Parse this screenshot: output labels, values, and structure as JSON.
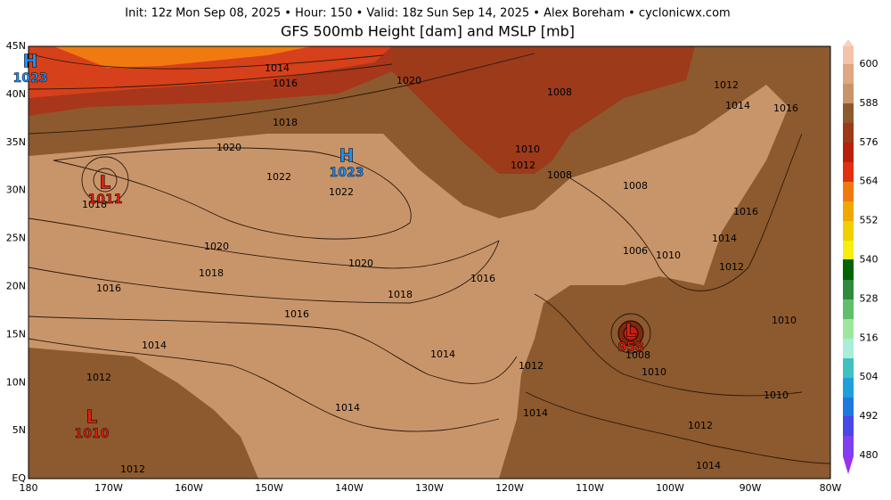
{
  "header": "Init: 12z Mon Sep 08, 2025  •  Hour: 150  •  Valid: 18z Sun Sep 14, 2025  •  Alex Boreham  •  cyclonicwx.com",
  "title": "GFS 500mb Height [dam] and MSLP [mb]",
  "lat_labels": [
    "45N",
    "40N",
    "35N",
    "30N",
    "25N",
    "20N",
    "15N",
    "10N",
    "5N",
    "EQ"
  ],
  "lon_labels": [
    "180",
    "170W",
    "160W",
    "150W",
    "140W",
    "130W",
    "120W",
    "110W",
    "100W",
    "90W",
    "80W"
  ],
  "colorbar_labels": [
    600,
    588,
    576,
    564,
    552,
    540,
    528,
    516,
    504,
    492,
    480
  ],
  "pressure_centers": [
    {
      "symbol": "H",
      "value": "1023"
    },
    {
      "symbol": "L",
      "value": "1011"
    },
    {
      "symbol": "H",
      "value": "1023"
    },
    {
      "symbol": "L",
      "value": "958"
    },
    {
      "symbol": "L",
      "value": "1010"
    }
  ],
  "isobar_labels": [
    "1014",
    "1016",
    "1020",
    "1018",
    "1008",
    "1012",
    "1014",
    "1016",
    "1020",
    "1010",
    "1012",
    "1008",
    "1022",
    "1022",
    "1008",
    "1018",
    "1016",
    "1020",
    "1014",
    "1006",
    "1010",
    "1020",
    "1012",
    "1018",
    "1016",
    "1016",
    "1018",
    "1016",
    "1010",
    "1014",
    "1014",
    "1008",
    "1012",
    "1010",
    "1012",
    "1010",
    "1014",
    "1014",
    "1012",
    "1014",
    "1012"
  ]
}
